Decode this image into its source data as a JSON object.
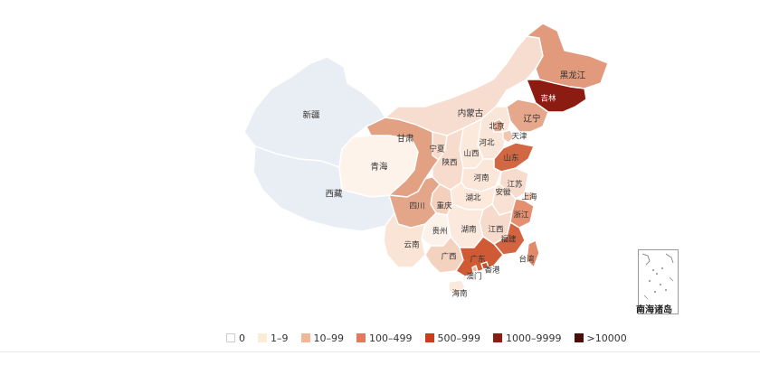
{
  "legend": [
    {
      "label": "0",
      "color": "#ffffff",
      "border": "#cccccc"
    },
    {
      "label": "1–9",
      "color": "#fbecd6"
    },
    {
      "label": "10–99",
      "color": "#f0b899"
    },
    {
      "label": "100–499",
      "color": "#e27a5d"
    },
    {
      "label": "500–999",
      "color": "#c73e1d"
    },
    {
      "label": "1000–9999",
      "color": "#8c1c12"
    },
    {
      "label": ">10000",
      "color": "#4a0d0a"
    }
  ],
  "provinces": {
    "xinjiang": {
      "name": "新疆",
      "color": "#e9eef5"
    },
    "xizang": {
      "name": "西藏",
      "color": "#e9eef5"
    },
    "qinghai": {
      "name": "青海",
      "color": "#fdf3ea"
    },
    "gansu": {
      "name": "甘肃",
      "color": "#e3a184"
    },
    "neimenggu": {
      "name": "内蒙古",
      "color": "#f6ddd0"
    },
    "heilongjiang": {
      "name": "黑龙江",
      "color": "#e29a7c"
    },
    "jilin": {
      "name": "吉林",
      "color": "#8c1c12"
    },
    "liaoning": {
      "name": "辽宁",
      "color": "#e6a88c"
    },
    "beijing": {
      "name": "北京",
      "color": "#e8ab8f"
    },
    "tianjin": {
      "name": "天津",
      "color": "#f2c7b1"
    },
    "hebei": {
      "name": "河北",
      "color": "#fae6d9"
    },
    "shanxi": {
      "name": "山西",
      "color": "#fbe9dc"
    },
    "ningxia": {
      "name": "宁夏",
      "color": "#f7dccd"
    },
    "shaanxi": {
      "name": "陕西",
      "color": "#f7dccd"
    },
    "shandong": {
      "name": "山东",
      "color": "#d26843"
    },
    "henan": {
      "name": "河南",
      "color": "#fbe7da"
    },
    "jiangsu": {
      "name": "江苏",
      "color": "#f7dccd"
    },
    "anhui": {
      "name": "安徽",
      "color": "#f9e2d4"
    },
    "shanghai": {
      "name": "上海",
      "color": "#f2c5ae"
    },
    "hubei": {
      "name": "湖北",
      "color": "#fde9dc"
    },
    "sichuan": {
      "name": "四川",
      "color": "#e4a689"
    },
    "chongqing": {
      "name": "重庆",
      "color": "#f4cfbb"
    },
    "zhejiang": {
      "name": "浙江",
      "color": "#e48f6f"
    },
    "hunan": {
      "name": "湖南",
      "color": "#fbe9dd"
    },
    "jiangxi": {
      "name": "江西",
      "color": "#f6dacb"
    },
    "fujian": {
      "name": "福建",
      "color": "#d4643f"
    },
    "guizhou": {
      "name": "贵州",
      "color": "#fdf2ea"
    },
    "yunnan": {
      "name": "云南",
      "color": "#f9e4d6"
    },
    "guangxi": {
      "name": "广西",
      "color": "#f4d2c0"
    },
    "guangdong": {
      "name": "广东",
      "color": "#cf5a34"
    },
    "hongkong": {
      "name": "香港",
      "color": "#c9501f"
    },
    "macau": {
      "name": "澳门",
      "color": "#eeb79d"
    },
    "taiwan": {
      "name": "台湾",
      "color": "#e08a69"
    },
    "hainan": {
      "name": "海南",
      "color": "#fbe9dc"
    }
  },
  "inset": {
    "label": "南海诸岛"
  }
}
